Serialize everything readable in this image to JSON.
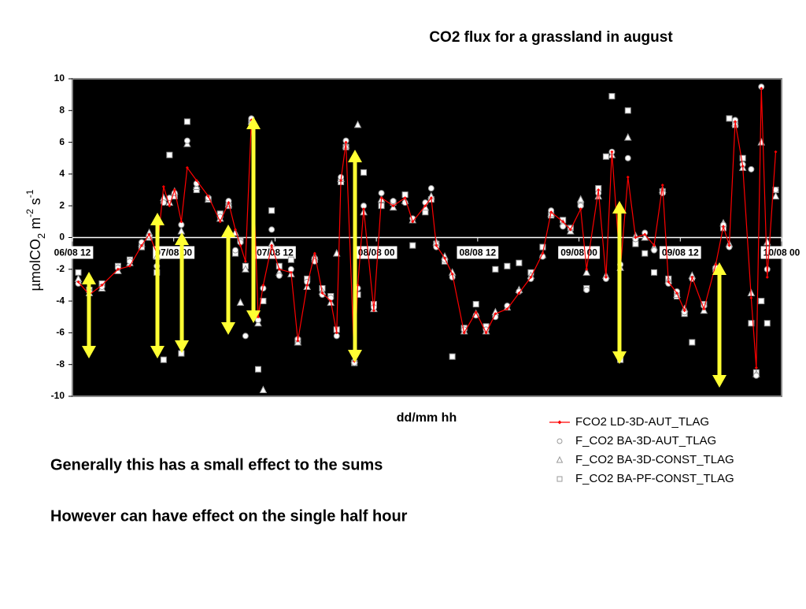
{
  "chart_data": {
    "type": "line",
    "title": "CO2 flux for a grassland in august",
    "x_label": "dd/mm  hh",
    "y_label": [
      "µmolCO",
      "2",
      " m",
      "-2",
      " s",
      "-1"
    ],
    "xlim": [
      0,
      84
    ],
    "xticks": [
      {
        "value": 0,
        "label": "06/08 12"
      },
      {
        "value": 12,
        "label": "07/08 00"
      },
      {
        "value": 24,
        "label": "07/08 12"
      },
      {
        "value": 36,
        "label": "08/08 00"
      },
      {
        "value": 48,
        "label": "08/08 12"
      },
      {
        "value": 60,
        "label": "09/08 00"
      },
      {
        "value": 72,
        "label": "09/08 12"
      },
      {
        "value": 84,
        "label": "10/08 00"
      }
    ],
    "ylim": [
      -10,
      10
    ],
    "yticks": [
      -10,
      -8,
      -6,
      -4,
      -2,
      0,
      2,
      4,
      6,
      8,
      10
    ],
    "x": [
      0.7,
      2,
      3.5,
      5.4,
      6.8,
      8.2,
      9.1,
      10,
      10.8,
      11.5,
      12.1,
      12.9,
      13.6,
      14.7,
      16.1,
      17.5,
      18.5,
      19.3,
      19.9,
      20.5,
      21.2,
      22,
      22.6,
      23.6,
      24.5,
      25.9,
      26.7,
      27.8,
      28.7,
      29.6,
      30.6,
      31.3,
      31.8,
      32.4,
      33.4,
      33.8,
      34.5,
      35.7,
      36.6,
      38,
      39.4,
      40.3,
      41.8,
      42.5,
      43.1,
      44.1,
      45,
      46.4,
      47.8,
      49,
      50.1,
      51.5,
      52.9,
      54.3,
      55.7,
      56.7,
      58.1,
      59,
      60.2,
      60.9,
      62.3,
      63.2,
      63.9,
      64.9,
      65.8,
      66.7,
      67.8,
      68.9,
      69.9,
      70.6,
      71.6,
      72.5,
      73.4,
      74.8,
      76.2,
      77.1,
      77.8,
      78.5,
      79.4,
      80.4,
      81,
      81.6,
      82.3,
      83.3
    ],
    "series": [
      {
        "name": "FCO2 LD-3D-AUT_TLAG",
        "color": "#ff0000",
        "marker": "diamond",
        "line": true,
        "values": [
          -2.8,
          -3.6,
          -3.0,
          -2.0,
          -1.8,
          -0.5,
          0.2,
          -1.0,
          3.2,
          2.0,
          3.0,
          1.0,
          4.4,
          3.6,
          2.6,
          1.0,
          2.2,
          0.5,
          -0.5,
          -1.5,
          7.4,
          -5.0,
          -3.0,
          -0.5,
          -2.0,
          -2.2,
          -6.5,
          -3.0,
          -1.0,
          -3.5,
          -4.0,
          -6.0,
          3.6,
          6.0,
          -7.8,
          -3.0,
          1.8,
          -4.6,
          2.5,
          2.0,
          2.5,
          1.0,
          2.0,
          2.5,
          -0.5,
          -1.3,
          -2.3,
          -6.0,
          -4.7,
          -6.0,
          -4.8,
          -4.5,
          -3.5,
          -2.5,
          -1.0,
          1.6,
          1.0,
          0.5,
          1.8,
          -2.0,
          3.0,
          -2.5,
          5.4,
          -2.0,
          3.8,
          0.0,
          0.2,
          -0.5,
          3.3,
          -2.8,
          -3.5,
          -4.6,
          -2.5,
          -4.5,
          -1.7,
          0.7,
          -0.5,
          7.3,
          4.5,
          -3.8,
          -8.2,
          9.4,
          -2.5,
          5.4
        ]
      },
      {
        "name": "F_CO2 BA-3D-AUT_TLAG",
        "color": "#ffffff",
        "marker": "circle",
        "line": false,
        "values": [
          -2.9,
          -3.4,
          -3.1,
          -1.9,
          -1.5,
          -0.3,
          0.1,
          -1.8,
          2.2,
          2.5,
          2.8,
          0.8,
          6.1,
          3.4,
          2.5,
          1.3,
          2.3,
          -0.8,
          -0.3,
          -6.2,
          7.5,
          -5.2,
          -3.2,
          0.5,
          -2.4,
          -2.0,
          -6.4,
          -2.8,
          -1.5,
          -3.6,
          -3.8,
          -6.2,
          3.8,
          6.1,
          -7.9,
          -3.2,
          2.0,
          -4.4,
          2.8,
          2.3,
          2.2,
          1.2,
          2.2,
          3.1,
          -0.6,
          -1.4,
          -2.5,
          -5.8,
          -4.9,
          -5.8,
          -5.0,
          -4.3,
          -3.4,
          -2.6,
          -1.2,
          1.7,
          0.7,
          0.6,
          2.0,
          -3.3,
          2.8,
          -2.6,
          5.4,
          -1.7,
          5.0,
          -0.1,
          0.3,
          -0.8,
          2.8,
          -2.9,
          -3.4,
          -4.7,
          -2.6,
          -4.3,
          -1.9,
          0.8,
          -0.6,
          7.4,
          4.6,
          4.3,
          -8.7,
          9.5,
          -2.0,
          3.0
        ]
      },
      {
        "name": "F_CO2 BA-3D-CONST_TLAG",
        "color": "#ffffff",
        "marker": "triangle",
        "line": false,
        "values": [
          -2.6,
          -3.5,
          -3.2,
          -2.1,
          -1.6,
          -0.4,
          0.3,
          -1.2,
          2.5,
          2.2,
          2.9,
          0.4,
          5.9,
          3.2,
          2.4,
          1.2,
          2.1,
          0.3,
          -4.1,
          -2.0,
          7.3,
          -5.4,
          -9.6,
          -0.4,
          -2.2,
          -2.3,
          -6.6,
          -3.1,
          -1.2,
          -3.4,
          -4.1,
          -1.0,
          3.7,
          5.8,
          -7.7,
          7.1,
          1.6,
          -4.5,
          2.4,
          1.9,
          2.3,
          1.1,
          1.9,
          2.6,
          -0.3,
          -1.2,
          -2.2,
          -5.9,
          -4.8,
          -5.9,
          -4.7,
          -4.4,
          -3.3,
          -2.4,
          -1.1,
          1.5,
          0.9,
          0.4,
          2.4,
          -2.2,
          2.6,
          -2.4,
          5.2,
          -1.9,
          6.3,
          0.1,
          0.0,
          -0.6,
          3.0,
          -2.7,
          -3.6,
          -4.5,
          -2.4,
          -4.6,
          -1.8,
          0.9,
          -0.4,
          7.2,
          4.4,
          -3.5,
          -8.6,
          6.0,
          -0.3,
          2.6
        ]
      },
      {
        "name": "F_CO2 BA-PF-CONST_TLAG",
        "color": "#ffffff",
        "marker": "square",
        "line": false,
        "values": [
          -2.2,
          -3.3,
          -2.9,
          -1.8,
          -1.4,
          -0.6,
          0.0,
          -2.2,
          -7.7,
          5.2,
          2.6,
          -7.3,
          7.3,
          3.0,
          2.4,
          1.5,
          2.0,
          -1.0,
          -0.2,
          -1.8,
          7.3,
          -8.3,
          -4.0,
          1.7,
          -1.8,
          -1.4,
          -6.5,
          -2.6,
          -1.4,
          -3.2,
          -3.7,
          -5.8,
          3.5,
          5.7,
          -7.9,
          -3.6,
          4.1,
          -4.2,
          2.0,
          2.2,
          2.7,
          -0.5,
          1.6,
          2.4,
          -0.4,
          -1.5,
          -7.5,
          -5.7,
          -4.2,
          -5.6,
          -2.0,
          -1.8,
          -1.6,
          -2.2,
          -0.6,
          1.4,
          1.1,
          0.6,
          2.1,
          -3.2,
          3.1,
          5.1,
          8.9,
          -7.7,
          8.0,
          -0.4,
          -1.0,
          -2.2,
          2.9,
          -2.6,
          -3.7,
          -4.8,
          -6.6,
          -4.2,
          -2.0,
          0.6,
          7.5,
          7.1,
          5.0,
          -5.4,
          -8.5,
          -4.0,
          -5.4,
          3.0
        ]
      }
    ],
    "notes": [
      "Generally this has a small effect to the sums",
      "However can have effect on the single half hour"
    ]
  }
}
